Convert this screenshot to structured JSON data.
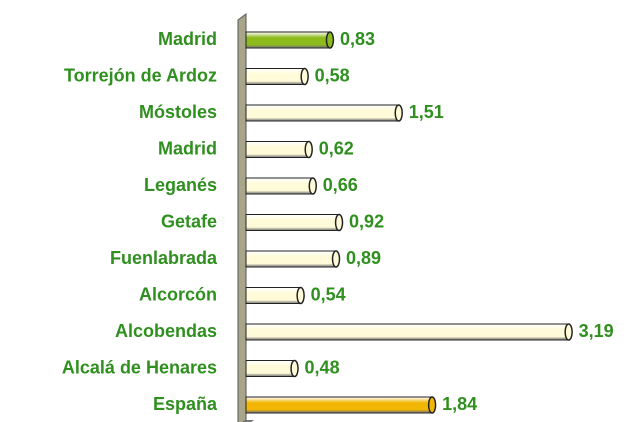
{
  "chart_data": {
    "type": "bar",
    "orientation": "horizontal",
    "categories": [
      "Madrid",
      "Torrejón de Ardoz",
      "Móstoles",
      "Madrid",
      "Leganés",
      "Getafe",
      "Fuenlabrada",
      "Alcorcón",
      "Alcobendas",
      "Alcalá de Henares",
      "España"
    ],
    "values": [
      0.83,
      0.58,
      1.51,
      0.62,
      0.66,
      0.92,
      0.89,
      0.54,
      3.19,
      0.48,
      1.84
    ],
    "value_labels": [
      "0,83",
      "0,58",
      "1,51",
      "0,62",
      "0,66",
      "0,92",
      "0,89",
      "0,54",
      "3,19",
      "0,48",
      "1,84"
    ],
    "colors": [
      "#8dbb1c",
      "#fffbd8",
      "#fffbd8",
      "#fffbd8",
      "#fffbd8",
      "#fffbd8",
      "#fffbd8",
      "#fffbd8",
      "#fffbd8",
      "#fffbd8",
      "#f2b705"
    ],
    "xlim": [
      0,
      3.5
    ]
  }
}
